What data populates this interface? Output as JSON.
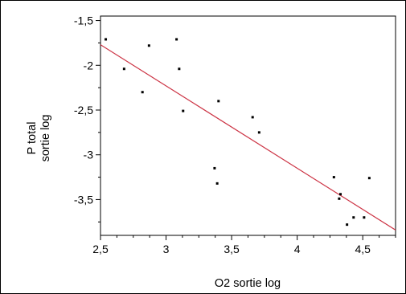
{
  "chart_data": {
    "type": "scatter",
    "title": "",
    "xlabel": "O2 sortie log",
    "ylabel_lines": [
      "P total",
      "sortie log"
    ],
    "xlim": [
      2.5,
      4.75
    ],
    "ylim": [
      -3.9,
      -1.45
    ],
    "x_ticks": [
      {
        "value": 2.5,
        "label": "2,5"
      },
      {
        "value": 3,
        "label": "3"
      },
      {
        "value": 3.5,
        "label": "3,5"
      },
      {
        "value": 4,
        "label": "4"
      },
      {
        "value": 4.5,
        "label": "4,5"
      }
    ],
    "y_ticks": [
      {
        "value": -1.5,
        "label": "-1,5"
      },
      {
        "value": -2,
        "label": "-2"
      },
      {
        "value": -2.5,
        "label": "-2,5"
      },
      {
        "value": -3,
        "label": "-3"
      },
      {
        "value": -3.5,
        "label": "-3,5"
      }
    ],
    "points": [
      {
        "x": 2.54,
        "y": -1.71
      },
      {
        "x": 2.68,
        "y": -2.04
      },
      {
        "x": 2.82,
        "y": -2.3
      },
      {
        "x": 2.87,
        "y": -1.78
      },
      {
        "x": 3.08,
        "y": -1.71
      },
      {
        "x": 3.1,
        "y": -2.04
      },
      {
        "x": 3.13,
        "y": -2.51
      },
      {
        "x": 3.37,
        "y": -3.15
      },
      {
        "x": 3.39,
        "y": -3.32
      },
      {
        "x": 3.4,
        "y": -2.4
      },
      {
        "x": 3.66,
        "y": -2.58
      },
      {
        "x": 3.71,
        "y": -2.75
      },
      {
        "x": 4.28,
        "y": -3.25
      },
      {
        "x": 4.32,
        "y": -3.49
      },
      {
        "x": 4.33,
        "y": -3.44
      },
      {
        "x": 4.38,
        "y": -3.78
      },
      {
        "x": 4.43,
        "y": -3.7
      },
      {
        "x": 4.51,
        "y": -3.7
      },
      {
        "x": 4.55,
        "y": -3.26
      }
    ],
    "fit_line": {
      "x": [
        2.5,
        4.75
      ],
      "y": [
        -1.77,
        -3.84
      ]
    },
    "grid": false,
    "colors": {
      "points": "#000000",
      "fit_line": "#cc3344",
      "frame": "#000000"
    }
  }
}
